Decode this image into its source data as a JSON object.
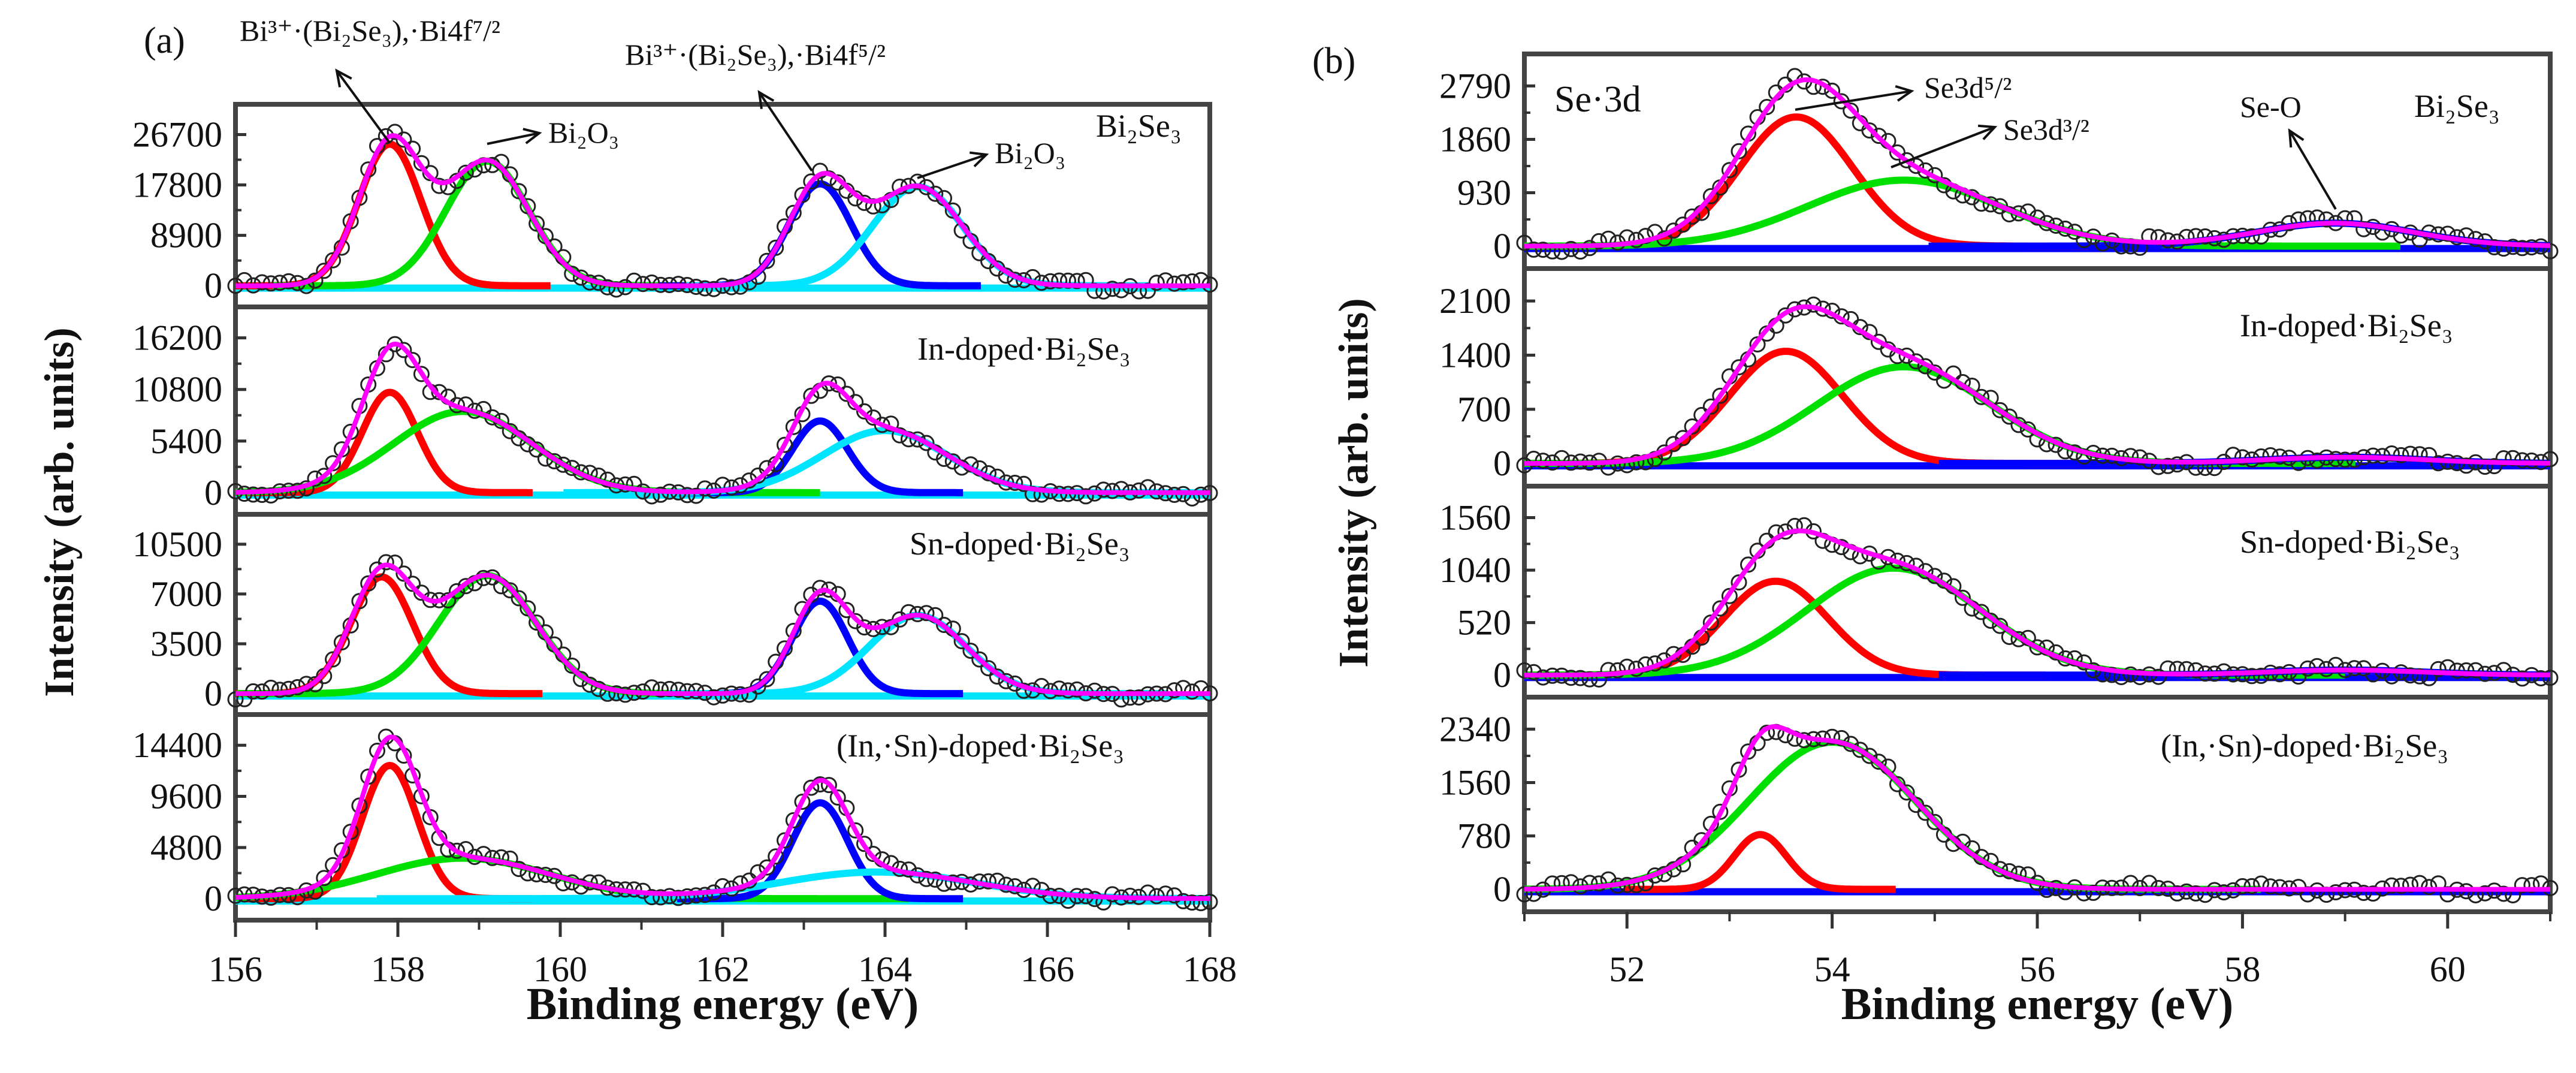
{
  "chart_data": [
    {
      "type": "line",
      "panel_label": "(a)",
      "xlabel": "Binding energy (eV)",
      "ylabel": "Intensity (arb. units)",
      "xlim": [
        156,
        168
      ],
      "xticks": [
        156,
        158,
        160,
        162,
        164,
        166,
        168
      ],
      "xtick_labels": [
        "156",
        "158",
        "160",
        "162",
        "164",
        "166",
        "168"
      ],
      "baseline_color": "#00e5ff",
      "annotations": [
        {
          "text": "Bi³⁺·(Bi₂Se₃),·Bi4f⁷/²"
        },
        {
          "text": "Bi³⁺·(Bi₂Se₃),·Bi4f⁵/²"
        },
        {
          "text": "Bi₂O₃"
        },
        {
          "text": "Bi₂O₃"
        }
      ],
      "subplots": [
        {
          "sample": "Bi₂Se₃",
          "yticks": [
            0,
            8900,
            17800,
            26700
          ],
          "ytick_labels": [
            "0",
            "8900",
            "17800",
            "26700"
          ],
          "components": [
            {
              "name": "Bi4f7/2 Bi2Se3",
              "color": "#ff0000",
              "center": 157.9,
              "amplitude": 25000,
              "fwhm": 0.9
            },
            {
              "name": "Bi4f7/2 Bi2O3",
              "color": "#00e000",
              "center": 159.1,
              "amplitude": 22000,
              "fwhm": 1.2
            },
            {
              "name": "Bi4f5/2 Bi2Se3",
              "color": "#0000ff",
              "center": 163.2,
              "amplitude": 18000,
              "fwhm": 0.9
            },
            {
              "name": "Bi4f5/2 Bi2O3",
              "color": "#00e5ff",
              "center": 164.4,
              "amplitude": 17500,
              "fwhm": 1.3
            }
          ]
        },
        {
          "sample": "In-doped·Bi₂Se₃",
          "yticks": [
            0,
            5400,
            10800,
            16200
          ],
          "ytick_labels": [
            "0",
            "5400",
            "10800",
            "16200"
          ],
          "components": [
            {
              "name": "Bi4f7/2 Bi2Se3",
              "color": "#ff0000",
              "center": 157.9,
              "amplitude": 10500,
              "fwhm": 0.8
            },
            {
              "name": "Bi4f7/2 Bi2O3",
              "color": "#00e000",
              "center": 158.8,
              "amplitude": 8500,
              "fwhm": 2.0
            },
            {
              "name": "Bi4f5/2 Bi2Se3",
              "color": "#0000ff",
              "center": 163.2,
              "amplitude": 7500,
              "fwhm": 0.8
            },
            {
              "name": "Bi4f5/2 Bi2O3",
              "color": "#00e5ff",
              "center": 164.0,
              "amplitude": 6500,
              "fwhm": 1.8
            }
          ]
        },
        {
          "sample": "Sn-doped·Bi₂Se₃",
          "yticks": [
            0,
            3500,
            7000,
            10500
          ],
          "ytick_labels": [
            "0",
            "3500",
            "7000",
            "10500"
          ],
          "components": [
            {
              "name": "Bi4f7/2 Bi2Se3",
              "color": "#ff0000",
              "center": 157.8,
              "amplitude": 8200,
              "fwhm": 0.9
            },
            {
              "name": "Bi4f7/2 Bi2O3",
              "color": "#00e000",
              "center": 159.1,
              "amplitude": 8300,
              "fwhm": 1.4
            },
            {
              "name": "Bi4f5/2 Bi2Se3",
              "color": "#0000ff",
              "center": 163.2,
              "amplitude": 6500,
              "fwhm": 0.8
            },
            {
              "name": "Bi4f5/2 Bi2O3",
              "color": "#00e5ff",
              "center": 164.4,
              "amplitude": 5500,
              "fwhm": 1.4
            }
          ]
        },
        {
          "sample": "(In,·Sn)-doped·Bi₂Se₃",
          "yticks": [
            0,
            4800,
            9600,
            14400
          ],
          "ytick_labels": [
            "0",
            "4800",
            "9600",
            "14400"
          ],
          "components": [
            {
              "name": "Bi4f7/2 Bi2Se3",
              "color": "#ff0000",
              "center": 157.9,
              "amplitude": 12500,
              "fwhm": 0.8
            },
            {
              "name": "Bi4f7/2 Bi2O3",
              "color": "#00e000",
              "center": 158.8,
              "amplitude": 3800,
              "fwhm": 2.5
            },
            {
              "name": "Bi4f5/2 Bi2Se3",
              "color": "#0000ff",
              "center": 163.2,
              "amplitude": 9000,
              "fwhm": 0.8
            },
            {
              "name": "Bi4f5/2 Bi2O3",
              "color": "#00e5ff",
              "center": 163.9,
              "amplitude": 2500,
              "fwhm": 2.8
            }
          ]
        }
      ]
    },
    {
      "type": "line",
      "panel_label": "(b)",
      "xlabel": "Binding energy (eV)",
      "ylabel": "Intensity (arb. units)",
      "xlim": [
        51,
        61
      ],
      "xticks": [
        52,
        54,
        56,
        58,
        60
      ],
      "xtick_labels": [
        "52",
        "54",
        "56",
        "58",
        "60"
      ],
      "baseline_color": "#0000ff",
      "region_label": "Se·3d",
      "annotations": [
        {
          "text": "Se3d⁵/²"
        },
        {
          "text": "Se3d³/²"
        },
        {
          "text": "Se-O"
        }
      ],
      "subplots": [
        {
          "sample": "Bi₂Se₃",
          "yticks": [
            0,
            930,
            1860,
            2790
          ],
          "ytick_labels": [
            "0",
            "930",
            "1860",
            "2790"
          ],
          "components": [
            {
              "name": "Se3d5/2",
              "color": "#ff0000",
              "center": 53.65,
              "amplitude": 2250,
              "fwhm": 1.3
            },
            {
              "name": "Se3d3/2",
              "color": "#00e000",
              "center": 54.7,
              "amplitude": 1150,
              "fwhm": 2.2
            },
            {
              "name": "Se-O",
              "color": "#0000ff",
              "center": 58.9,
              "amplitude": 400,
              "fwhm": 1.8
            }
          ]
        },
        {
          "sample": "In-doped·Bi₂Se₃",
          "yticks": [
            0,
            700,
            1400,
            2100
          ],
          "ytick_labels": [
            "0",
            "700",
            "1400",
            "2100"
          ],
          "components": [
            {
              "name": "Se3d5/2",
              "color": "#ff0000",
              "center": 53.55,
              "amplitude": 1450,
              "fwhm": 1.3
            },
            {
              "name": "Se3d3/2",
              "color": "#00e000",
              "center": 54.7,
              "amplitude": 1250,
              "fwhm": 2.0
            },
            {
              "name": "Se-O",
              "color": "#0000ff",
              "center": 59.0,
              "amplitude": 80,
              "fwhm": 1.8
            }
          ]
        },
        {
          "sample": "Sn-doped·Bi₂Se₃",
          "yticks": [
            0,
            520,
            1040,
            1560
          ],
          "ytick_labels": [
            "0",
            "520",
            "1040",
            "1560"
          ],
          "components": [
            {
              "name": "Se3d5/2",
              "color": "#ff0000",
              "center": 53.45,
              "amplitude": 930,
              "fwhm": 1.2
            },
            {
              "name": "Se3d3/2",
              "color": "#00e000",
              "center": 54.6,
              "amplitude": 1060,
              "fwhm": 2.0
            },
            {
              "name": "Se-O",
              "color": "#0000ff",
              "center": 59.0,
              "amplitude": 50,
              "fwhm": 1.8
            }
          ]
        },
        {
          "sample": "(In,·Sn)-doped·Bi₂Se₃",
          "yticks": [
            0,
            780,
            1560,
            2340
          ],
          "ytick_labels": [
            "0",
            "780",
            "1560",
            "2340"
          ],
          "components": [
            {
              "name": "Se3d5/2",
              "color": "#ff0000",
              "center": 53.3,
              "amplitude": 800,
              "fwhm": 0.6
            },
            {
              "name": "Se3d3/2",
              "color": "#00e000",
              "center": 54.0,
              "amplitude": 2150,
              "fwhm": 1.9
            }
          ]
        }
      ]
    }
  ],
  "colors": {
    "envelope": "#ff00ff",
    "data_points": "#222222",
    "frame": "#444444"
  }
}
